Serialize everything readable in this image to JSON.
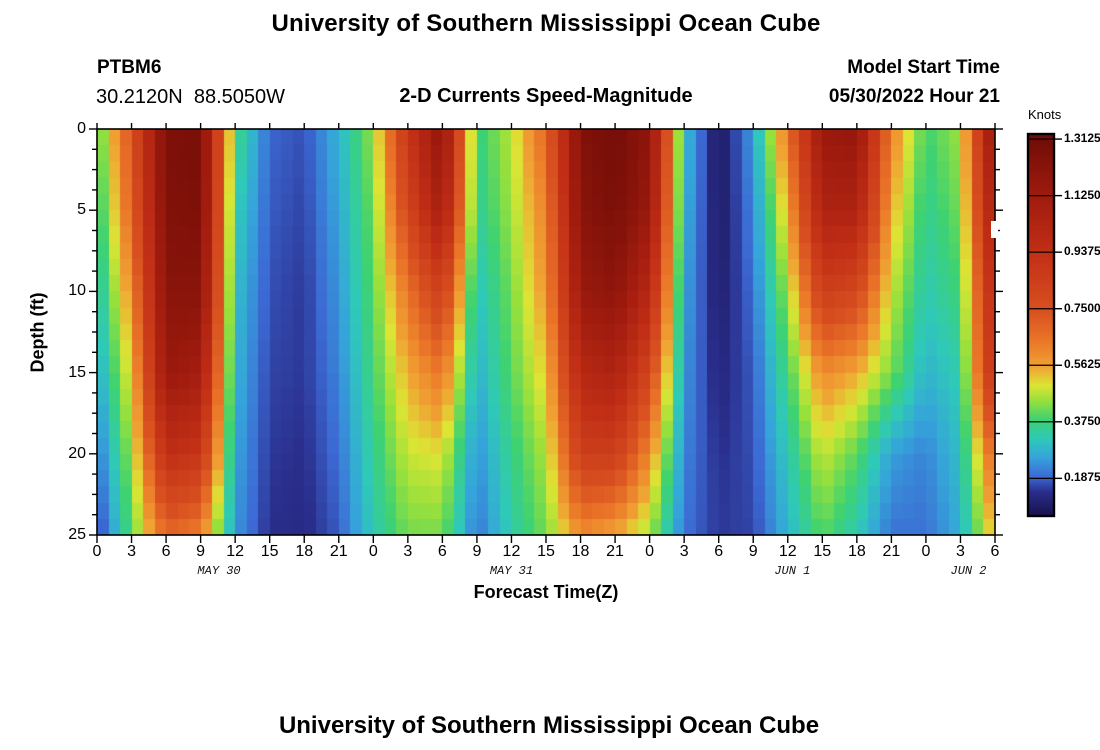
{
  "header": {
    "title": "University of Southern Mississippi Ocean Cube",
    "station_id": "PTBM6",
    "coordinates": "30.2120N  88.5050W",
    "subtitle": "2-D Currents Speed-Magnitude",
    "model_start_label": "Model Start Time",
    "model_start_value": "05/30/2022 Hour 21"
  },
  "footer": {
    "next_chart_title": "University of Southern Mississippi Ocean Cube"
  },
  "chart_data": {
    "type": "heatmap",
    "title": "2-D Currents Speed-Magnitude",
    "xlabel": "Forecast Time(Z)",
    "ylabel": "Depth (ft)",
    "unit": "Knots",
    "xlim_hours": [
      0,
      78
    ],
    "ylim_ft": [
      0,
      25
    ],
    "x_tick_hours": [
      0,
      3,
      6,
      9,
      12,
      15,
      18,
      21,
      24,
      27,
      30,
      33,
      36,
      39,
      42,
      45,
      48,
      51,
      54,
      57,
      60,
      63,
      66,
      69,
      72,
      75,
      78
    ],
    "x_tick_labels": [
      "0",
      "3",
      "6",
      "9",
      "12",
      "15",
      "18",
      "21",
      "0",
      "3",
      "6",
      "9",
      "12",
      "15",
      "18",
      "21",
      "0",
      "3",
      "6",
      "9",
      "12",
      "15",
      "18",
      "21",
      "0",
      "3",
      "6"
    ],
    "x_date_labels": [
      {
        "label": "MAY 30",
        "center_hour": 10.6
      },
      {
        "label": "MAY 31",
        "center_hour": 36.0
      },
      {
        "label": "JUN 1",
        "center_hour": 60.4
      },
      {
        "label": "JUN 2",
        "center_hour": 75.7
      }
    ],
    "y_tick_depths": [
      0,
      5,
      10,
      15,
      20,
      25
    ],
    "y_tick_labels": [
      "0",
      "5",
      "10",
      "15",
      "20",
      "25"
    ],
    "y_minor_tick_step_ft": 1.25,
    "colorbar": {
      "unit": "Knots",
      "vmin": 0.066,
      "vmax": 1.326,
      "tick_values": [
        1.3125,
        1.125,
        0.9375,
        0.75,
        0.5625,
        0.375,
        0.1875
      ],
      "tick_labels": [
        "1.3125",
        "1.1250",
        "0.9375",
        "0.7500",
        "0.5625",
        "0.3750",
        "0.1875"
      ],
      "colormap_stops": [
        [
          0.0,
          "#191350"
        ],
        [
          0.06,
          "#2a2e8c"
        ],
        [
          0.1,
          "#3c6ad4"
        ],
        [
          0.15,
          "#35a4da"
        ],
        [
          0.2,
          "#2fc9b8"
        ],
        [
          0.25,
          "#3ed271"
        ],
        [
          0.3,
          "#97e03c"
        ],
        [
          0.34,
          "#dce534"
        ],
        [
          0.39,
          "#f0a233"
        ],
        [
          0.46,
          "#ea7528"
        ],
        [
          0.54,
          "#d85020"
        ],
        [
          0.69,
          "#c22f16"
        ],
        [
          0.84,
          "#a01b0e"
        ],
        [
          1.0,
          "#6f0c07"
        ]
      ]
    },
    "values_knots": {
      "comment_units": "current speed in knots, sampled every 3 forecast hours at 6 depths",
      "depths_ft": [
        0,
        5,
        10,
        15,
        20,
        25
      ],
      "hours": [
        0,
        3,
        6,
        9,
        12,
        15,
        18,
        21,
        24,
        27,
        30,
        33,
        36,
        39,
        42,
        45,
        48,
        51,
        54,
        57,
        60,
        63,
        66,
        69,
        72,
        75,
        78
      ],
      "grid": [
        [
          0.38,
          0.75,
          1.27,
          1.28,
          0.38,
          0.19,
          0.17,
          0.28,
          0.45,
          0.9,
          1.2,
          0.36,
          0.47,
          0.68,
          1.25,
          1.3,
          1.2,
          0.3,
          0.08,
          0.25,
          0.65,
          1.15,
          1.18,
          0.62,
          0.38,
          0.45,
          1.2
        ],
        [
          0.34,
          0.7,
          1.25,
          1.27,
          0.33,
          0.18,
          0.16,
          0.26,
          0.42,
          0.8,
          1.1,
          0.34,
          0.45,
          0.62,
          1.22,
          1.28,
          1.15,
          0.28,
          0.09,
          0.22,
          0.55,
          1.05,
          1.05,
          0.55,
          0.35,
          0.42,
          1.1
        ],
        [
          0.3,
          0.6,
          1.22,
          1.22,
          0.3,
          0.17,
          0.15,
          0.24,
          0.4,
          0.65,
          0.85,
          0.3,
          0.42,
          0.58,
          1.15,
          1.2,
          1.0,
          0.26,
          0.1,
          0.2,
          0.45,
          0.85,
          0.8,
          0.48,
          0.32,
          0.38,
          1.0
        ],
        [
          0.26,
          0.52,
          1.15,
          1.1,
          0.28,
          0.16,
          0.15,
          0.22,
          0.38,
          0.55,
          0.65,
          0.27,
          0.4,
          0.52,
          1.0,
          1.05,
          0.8,
          0.24,
          0.12,
          0.18,
          0.38,
          0.6,
          0.55,
          0.42,
          0.28,
          0.33,
          0.95
        ],
        [
          0.2,
          0.45,
          0.95,
          0.9,
          0.26,
          0.15,
          0.14,
          0.2,
          0.35,
          0.48,
          0.5,
          0.23,
          0.36,
          0.46,
          0.85,
          0.85,
          0.6,
          0.22,
          0.14,
          0.17,
          0.32,
          0.48,
          0.4,
          0.25,
          0.22,
          0.3,
          0.7
        ],
        [
          0.14,
          0.4,
          0.68,
          0.62,
          0.24,
          0.14,
          0.13,
          0.18,
          0.32,
          0.42,
          0.42,
          0.2,
          0.33,
          0.42,
          0.6,
          0.55,
          0.45,
          0.2,
          0.15,
          0.16,
          0.28,
          0.4,
          0.32,
          0.2,
          0.2,
          0.27,
          0.55
        ]
      ]
    }
  }
}
